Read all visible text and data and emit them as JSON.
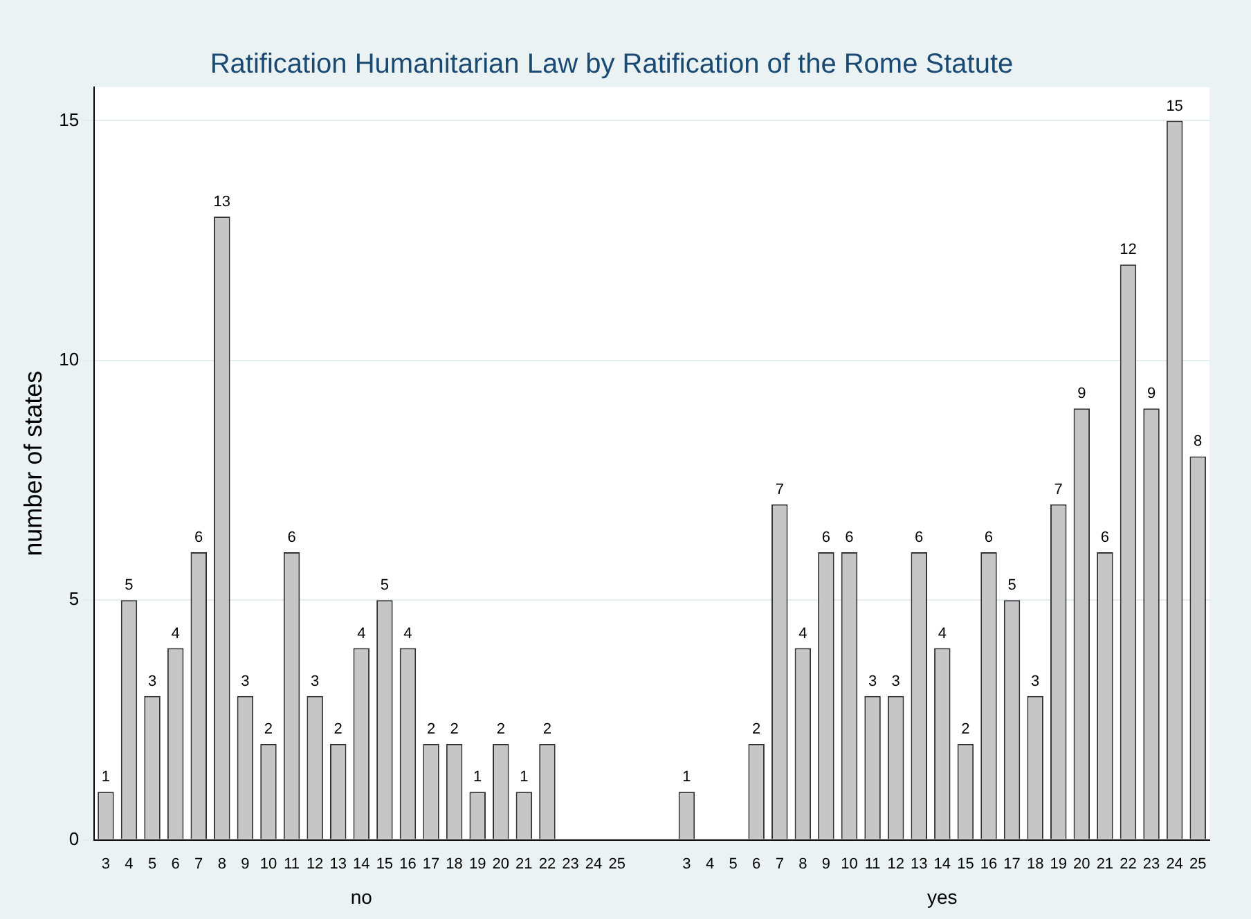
{
  "chart_data": {
    "type": "bar",
    "title": "Ratification Humanitarian Law by Ratification of the Rome Statute",
    "ylabel": "number of states",
    "categories": [
      "3",
      "4",
      "5",
      "6",
      "7",
      "8",
      "9",
      "10",
      "11",
      "12",
      "13",
      "14",
      "15",
      "16",
      "17",
      "18",
      "19",
      "20",
      "21",
      "22",
      "23",
      "24",
      "25",
      null,
      null,
      "3",
      "4",
      "5",
      "6",
      "7",
      "8",
      "9",
      "10",
      "11",
      "12",
      "13",
      "14",
      "15",
      "16",
      "17",
      "18",
      "19",
      "20",
      "21",
      "22",
      "23",
      "24",
      "25"
    ],
    "values": [
      1,
      5,
      3,
      4,
      6,
      13,
      3,
      2,
      6,
      3,
      2,
      4,
      5,
      4,
      2,
      2,
      1,
      2,
      1,
      2,
      null,
      null,
      null,
      null,
      null,
      1,
      null,
      null,
      2,
      7,
      4,
      6,
      6,
      3,
      3,
      6,
      4,
      2,
      6,
      5,
      3,
      7,
      9,
      6,
      12,
      9,
      15,
      8
    ],
    "color": "#c6c6c6",
    "annotations": [
      "no",
      "yes"
    ],
    "ylim": [
      0,
      15.7
    ],
    "yticks": [
      0,
      5,
      10,
      15
    ],
    "grid": "y",
    "legend": false,
    "data_labels": true
  }
}
